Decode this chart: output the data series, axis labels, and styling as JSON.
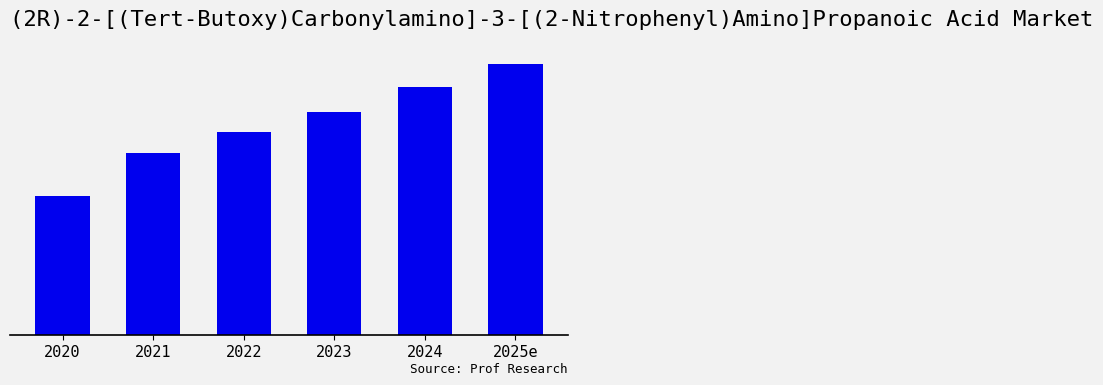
{
  "title": "(2R)-2-[(Tert-Butoxy)Carbonylamino]-3-[(2-Nitrophenyl)Amino]Propanoic Acid Market",
  "categories": [
    "2020",
    "2021",
    "2022",
    "2023",
    "2024",
    "2025e"
  ],
  "values": [
    55,
    72,
    80,
    88,
    98,
    107
  ],
  "bar_color": "#0000EE",
  "background_color": "#f2f2f2",
  "source_text": "Source: Prof Research",
  "title_fontsize": 16,
  "tick_fontsize": 11,
  "source_fontsize": 9,
  "ylim": [
    0,
    120
  ],
  "bar_width": 0.6
}
